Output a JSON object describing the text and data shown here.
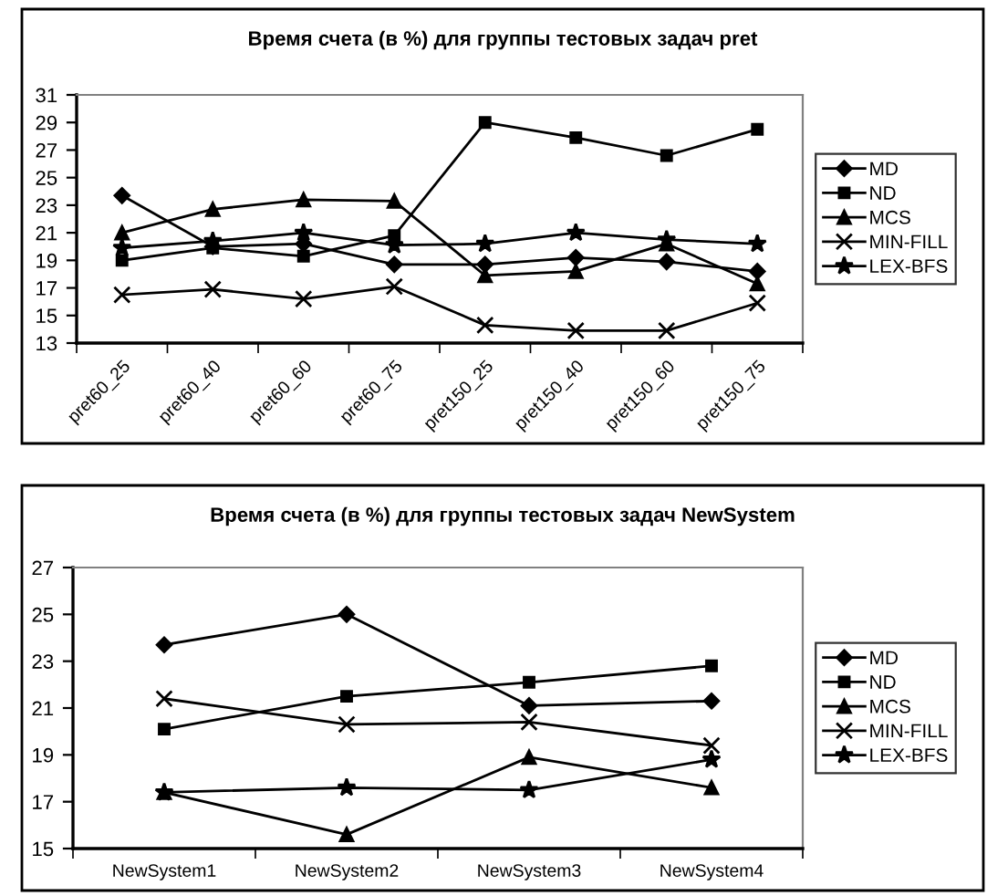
{
  "chart_data": [
    {
      "type": "line",
      "title": "Время счета (в %) для группы тестовых задач pret",
      "categories": [
        "pret60_25",
        "pret60_40",
        "pret60_60",
        "pret60_75",
        "pret150_25",
        "pret150_40",
        "pret150_60",
        "pret150_75"
      ],
      "ylim": [
        13,
        31
      ],
      "yticks": [
        13,
        15,
        17,
        19,
        21,
        23,
        25,
        27,
        29,
        31
      ],
      "legend": "right",
      "grid": false,
      "series": [
        {
          "name": "MD",
          "color": "#000000",
          "marker": "diamond",
          "values": [
            23.7,
            20.0,
            20.2,
            18.7,
            18.7,
            19.2,
            18.9,
            18.2
          ]
        },
        {
          "name": "ND",
          "color": "#000000",
          "marker": "square",
          "values": [
            19.0,
            19.9,
            19.3,
            20.8,
            29.0,
            27.9,
            26.6,
            28.5
          ]
        },
        {
          "name": "MCS",
          "color": "#000000",
          "marker": "triangle",
          "values": [
            21.0,
            22.7,
            23.4,
            23.3,
            17.9,
            18.2,
            20.2,
            17.3
          ]
        },
        {
          "name": "MIN-FILL",
          "color": "#000000",
          "marker": "cross",
          "values": [
            16.5,
            16.9,
            16.2,
            17.1,
            14.3,
            13.9,
            13.9,
            15.9
          ]
        },
        {
          "name": "LEX-BFS",
          "color": "#000000",
          "marker": "star",
          "values": [
            19.9,
            20.4,
            21.0,
            20.1,
            20.2,
            21.0,
            20.5,
            20.2
          ]
        }
      ]
    },
    {
      "type": "line",
      "title": "Время счета (в %) для группы тестовых задач NewSystem",
      "categories": [
        "NewSystem1",
        "NewSystem2",
        "NewSystem3",
        "NewSystem4"
      ],
      "ylim": [
        15,
        27
      ],
      "yticks": [
        15,
        17,
        19,
        21,
        23,
        25,
        27
      ],
      "legend": "right",
      "grid": false,
      "series": [
        {
          "name": "MD",
          "color": "#000000",
          "marker": "diamond",
          "values": [
            23.7,
            25.0,
            21.1,
            21.3
          ]
        },
        {
          "name": "ND",
          "color": "#000000",
          "marker": "square",
          "values": [
            20.1,
            21.5,
            22.1,
            22.8
          ]
        },
        {
          "name": "MCS",
          "color": "#000000",
          "marker": "triangle",
          "values": [
            17.4,
            15.6,
            18.9,
            17.6
          ]
        },
        {
          "name": "MIN-FILL",
          "color": "#000000",
          "marker": "cross",
          "values": [
            21.4,
            20.3,
            20.4,
            19.4
          ]
        },
        {
          "name": "LEX-BFS",
          "color": "#000000",
          "marker": "star",
          "values": [
            17.4,
            17.6,
            17.5,
            18.8
          ]
        }
      ]
    }
  ]
}
